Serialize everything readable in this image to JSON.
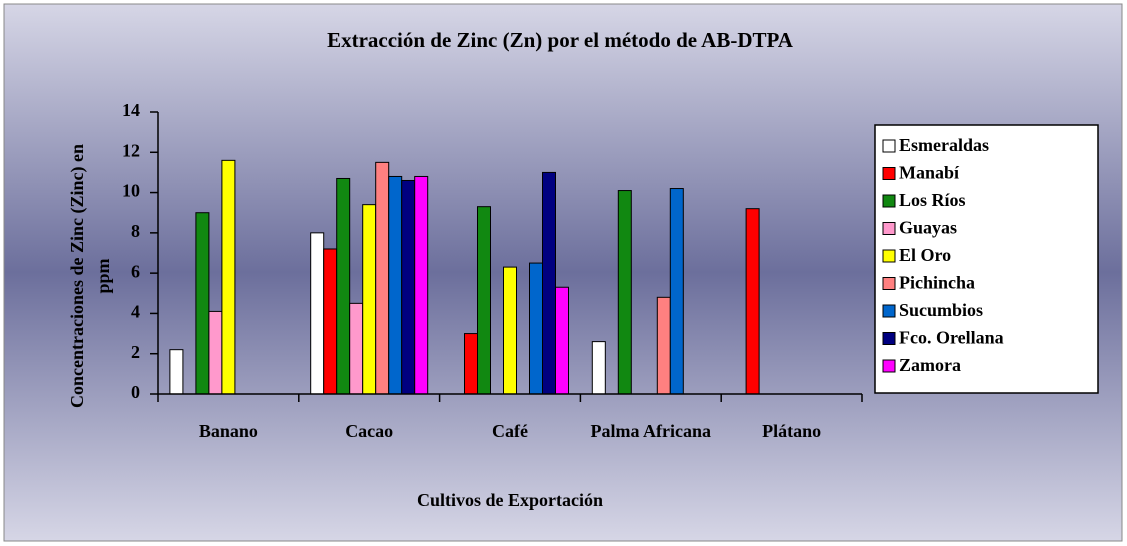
{
  "chart_data": {
    "type": "bar",
    "title": "Extracción de Zinc (Zn) por el método de AB-DTPA",
    "y_label": "Concentraciones de Zinc (Zinc) en ppm",
    "x_label": "Cultivos de Exportación",
    "categories": [
      "Banano",
      "Cacao",
      "Café",
      "Palma Africana",
      "Plátano"
    ],
    "ylim": [
      0,
      14
    ],
    "yticks": [
      0,
      2,
      4,
      6,
      8,
      10,
      12,
      14
    ],
    "grid": false,
    "legend": "right",
    "series": [
      {
        "name": "Esmeraldas",
        "color": "#ffffff",
        "values": [
          2.2,
          8.0,
          null,
          2.6,
          null
        ]
      },
      {
        "name": "Manabí",
        "color": "#ff0000",
        "values": [
          null,
          7.2,
          3.0,
          null,
          9.2
        ]
      },
      {
        "name": "Los Ríos",
        "color": "#118811",
        "values": [
          9.0,
          10.7,
          9.3,
          10.1,
          null
        ]
      },
      {
        "name": "Guayas",
        "color": "#ff99cc",
        "values": [
          4.1,
          4.5,
          null,
          null,
          null
        ]
      },
      {
        "name": "El Oro",
        "color": "#ffff00",
        "values": [
          11.6,
          9.4,
          6.3,
          null,
          null
        ]
      },
      {
        "name": "Pichincha",
        "color": "#ff8080",
        "values": [
          null,
          11.5,
          null,
          4.8,
          null
        ]
      },
      {
        "name": "Sucumbios",
        "color": "#0066cc",
        "values": [
          null,
          10.8,
          6.5,
          10.2,
          null
        ]
      },
      {
        "name": "Fco. Orellana",
        "color": "#000080",
        "values": [
          null,
          10.6,
          11.0,
          null,
          null
        ]
      },
      {
        "name": "Zamora",
        "color": "#ff00ff",
        "values": [
          null,
          10.8,
          5.3,
          null,
          null
        ]
      }
    ]
  }
}
